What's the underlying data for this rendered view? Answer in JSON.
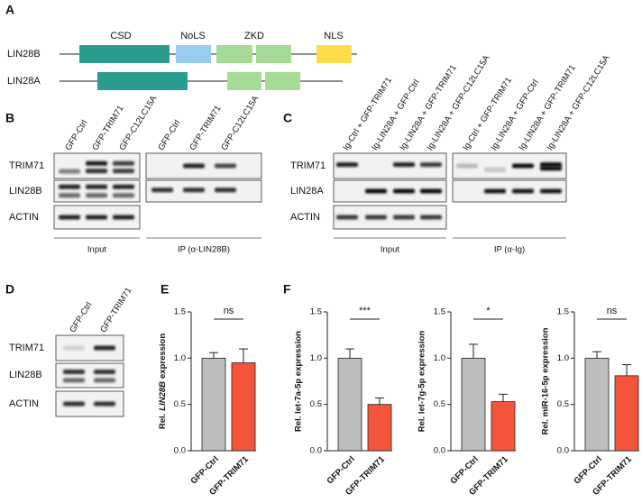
{
  "panel_labels": [
    "A",
    "B",
    "C",
    "D",
    "E",
    "F"
  ],
  "domains": {
    "proteins": [
      "LIN28B",
      "LIN28A"
    ],
    "labels": [
      "CSD",
      "NoLS",
      "ZKD",
      "NLS"
    ]
  },
  "blot_b": {
    "lanes": [
      "GFP-Ctrl",
      "GFP-TRIM71",
      "GFP-C12LC15A",
      "GFP-Ctrl",
      "GFP-TRIM71",
      "GFP-C12LC15A"
    ],
    "rows": [
      "TRIM71",
      "LIN28B",
      "ACTIN"
    ],
    "groups": [
      "Input",
      "IP (α-LIN28B)"
    ]
  },
  "blot_c": {
    "lanes": [
      "Ig-Ctrl + GFP-TRIM71",
      "Ig-LIN28A + GFP-Ctrl",
      "Ig-LIN28A + GFP-TRIM71",
      "Ig-LIN28A + GFP-C12LC15A",
      "Ig-Ctrl + GFP-TRIM71",
      "Ig-LIN28A + GFP-Ctrl",
      "Ig-LIN28A + GFP-TRIM71",
      "Ig-LIN28A + GFP-C12LC15A"
    ],
    "rows": [
      "TRIM71",
      "LIN28A",
      "ACTIN"
    ],
    "groups": [
      "Input",
      "IP (α-Ig)"
    ]
  },
  "blot_d": {
    "lanes": [
      "GFP-Ctrl",
      "GFP-TRIM71"
    ],
    "rows": [
      "TRIM71",
      "LIN28B",
      "ACTIN"
    ]
  },
  "chart_data": [
    {
      "type": "bar",
      "y_label": [
        "Rel.",
        "LIN28B",
        "expression"
      ],
      "categories": [
        "GFP-Ctrl",
        "GFP-TRIM71"
      ],
      "values": [
        1.0,
        0.95
      ],
      "errors": [
        0.06,
        0.15
      ],
      "colors": [
        "#bdbdbd",
        "#f4553a"
      ],
      "ylim": [
        0,
        1.5
      ],
      "yticks": [
        {
          "value": 0,
          "label": "0.0"
        },
        0.5,
        {
          "value": 1.0,
          "label": "1.0"
        },
        1.5
      ],
      "annotation": "ns"
    },
    {
      "type": "bar",
      "y_label": "Rel. let-7a-5p expression",
      "categories": [
        "GFP-Ctrl",
        "GFP-TRIM71"
      ],
      "values": [
        1.0,
        0.5
      ],
      "errors": [
        0.1,
        0.07
      ],
      "colors": [
        "#bdbdbd",
        "#f4553a"
      ],
      "ylim": [
        0,
        1.5
      ],
      "yticks": [
        {
          "value": 0,
          "label": "0.0"
        },
        0.5,
        {
          "value": 1.0,
          "label": "1.0"
        },
        1.5
      ],
      "annotation": "***"
    },
    {
      "type": "bar",
      "y_label": "Rel. let-7g-5p expression",
      "categories": [
        "GFP-Ctrl",
        "GFP-TRIM71"
      ],
      "values": [
        1.0,
        0.53
      ],
      "errors": [
        0.15,
        0.08
      ],
      "colors": [
        "#bdbdbd",
        "#f4553a"
      ],
      "ylim": [
        0,
        1.5
      ],
      "yticks": [
        {
          "value": 0,
          "label": "0.0"
        },
        0.5,
        {
          "value": 1.0,
          "label": "1.0"
        },
        1.5
      ],
      "annotation": "*"
    },
    {
      "type": "bar",
      "y_label": "Rel. miR-16-5p expression",
      "categories": [
        "GFP-Ctrl",
        "GFP-TRIM71"
      ],
      "values": [
        1.0,
        0.81
      ],
      "errors": [
        0.07,
        0.12
      ],
      "colors": [
        "#bdbdbd",
        "#f4553a"
      ],
      "ylim": [
        0,
        1.5
      ],
      "yticks": [
        {
          "value": 0,
          "label": "0.0"
        },
        0.5,
        {
          "value": 1.0,
          "label": "1.0"
        },
        1.5
      ],
      "annotation": "ns"
    }
  ]
}
